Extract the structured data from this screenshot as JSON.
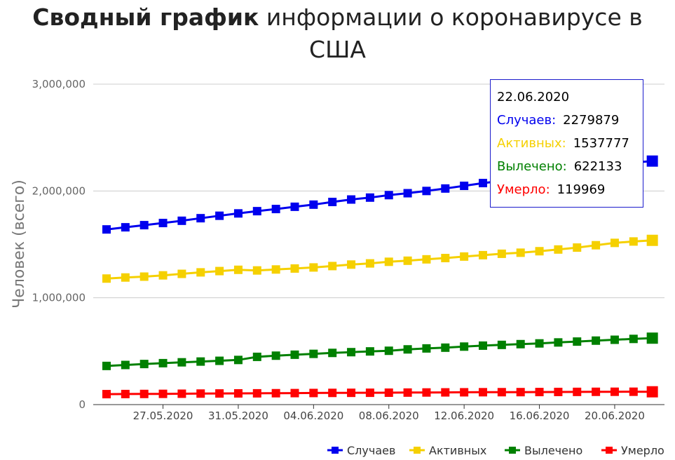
{
  "chart_data": {
    "type": "line",
    "title_bold": "Сводный график",
    "title_rest": "информации о коронавирусе в",
    "title_line2": "США",
    "ylabel": "Человек (всего)",
    "xlabel": "",
    "ylim": [
      0,
      3000000
    ],
    "yticks": [
      "0",
      "1,000,000",
      "2,000,000",
      "3,000,000"
    ],
    "x_tick_labels": [
      "27.05.2020",
      "31.05.2020",
      "04.06.2020",
      "08.06.2020",
      "12.06.2020",
      "16.06.2020",
      "20.06.2020"
    ],
    "x_tick_indices": [
      3,
      7,
      11,
      15,
      19,
      23,
      27
    ],
    "dates": [
      "24.05.2020",
      "25.05.2020",
      "26.05.2020",
      "27.05.2020",
      "28.05.2020",
      "29.05.2020",
      "30.05.2020",
      "31.05.2020",
      "01.06.2020",
      "02.06.2020",
      "03.06.2020",
      "04.06.2020",
      "05.06.2020",
      "06.06.2020",
      "07.06.2020",
      "08.06.2020",
      "09.06.2020",
      "10.06.2020",
      "11.06.2020",
      "12.06.2020",
      "13.06.2020",
      "14.06.2020",
      "15.06.2020",
      "16.06.2020",
      "17.06.2020",
      "18.06.2020",
      "19.06.2020",
      "20.06.2020",
      "21.06.2020",
      "22.06.2020"
    ],
    "grid": true,
    "legend_position": "bottom-right",
    "series": [
      {
        "name": "Случаев",
        "color": "#0000ee",
        "values": [
          1640000,
          1660000,
          1680000,
          1700000,
          1721000,
          1745000,
          1768000,
          1790000,
          1811000,
          1831000,
          1852000,
          1872000,
          1897000,
          1920000,
          1938000,
          1961000,
          1979000,
          2000000,
          2023000,
          2048000,
          2074000,
          2094000,
          2115000,
          2137000,
          2163000,
          2190000,
          2223000,
          2255000,
          2267000,
          2279879
        ]
      },
      {
        "name": "Активных",
        "color": "#f5d000",
        "values": [
          1180000,
          1190000,
          1198000,
          1210000,
          1224000,
          1238000,
          1250000,
          1262000,
          1256000,
          1265000,
          1274000,
          1284000,
          1297000,
          1311000,
          1322000,
          1337000,
          1347000,
          1360000,
          1372000,
          1386000,
          1399000,
          1412000,
          1422000,
          1436000,
          1452000,
          1470000,
          1492000,
          1514000,
          1527000,
          1537777
        ]
      },
      {
        "name": "Вылечено",
        "color": "#008000",
        "values": [
          362000,
          371000,
          380000,
          388000,
          396000,
          403000,
          410000,
          418000,
          447000,
          458000,
          467000,
          475000,
          484000,
          491000,
          498000,
          504000,
          517000,
          526000,
          533000,
          543000,
          552000,
          559000,
          566000,
          573000,
          582000,
          590000,
          599000,
          607000,
          615000,
          622133
        ]
      },
      {
        "name": "Умерло",
        "color": "#ff0000",
        "values": [
          98000,
          99000,
          99800,
          100700,
          101900,
          103300,
          104300,
          105100,
          105700,
          106700,
          107700,
          108700,
          109700,
          110400,
          110900,
          111600,
          112600,
          113600,
          114500,
          115300,
          116000,
          116400,
          116800,
          117700,
          118400,
          119100,
          119800,
          120300,
          120500,
          119969
        ]
      }
    ]
  },
  "tooltip": {
    "date": "22.06.2020",
    "rows": [
      {
        "label": "Случаев:",
        "value": "2279879",
        "color": "#0000ee"
      },
      {
        "label": "Активных:",
        "value": "1537777",
        "color": "#f5d000"
      },
      {
        "label": "Вылечено:",
        "value": "622133",
        "color": "#008000"
      },
      {
        "label": "Умерло:",
        "value": "119969",
        "color": "#ff0000"
      }
    ]
  }
}
